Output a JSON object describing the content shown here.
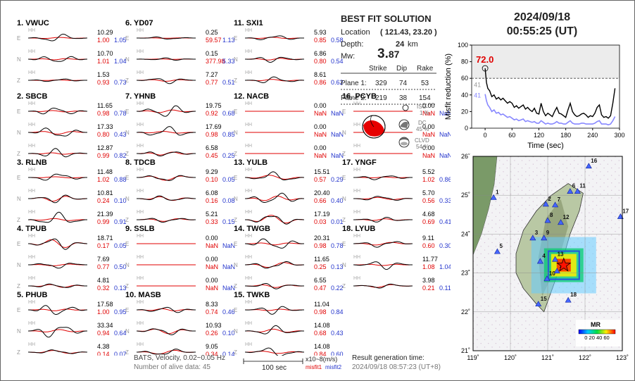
{
  "waveform_panel": {
    "channel_tag": "HH",
    "components": [
      "E",
      "N",
      "Z"
    ],
    "stations": [
      {
        "label": "1.  VWUC",
        "traces": [
          {
            "amp": "10.29",
            "m1": "1.00",
            "m2": "1.05",
            "has_data": true
          },
          {
            "amp": "10.70",
            "m1": "1.01",
            "m2": "1.04",
            "has_data": true
          },
          {
            "amp": "1.53",
            "m1": "0.93",
            "m2": "0.73",
            "has_data": true
          }
        ]
      },
      {
        "label": "2.  SBCB",
        "traces": [
          {
            "amp": "11.65",
            "m1": "0.98",
            "m2": "0.78",
            "has_data": true
          },
          {
            "amp": "17.33",
            "m1": "0.80",
            "m2": "0.43",
            "has_data": true
          },
          {
            "amp": "12.87",
            "m1": "0.99",
            "m2": "0.82",
            "has_data": true
          }
        ]
      },
      {
        "label": "3.  RLNB",
        "traces": [
          {
            "amp": "11.48",
            "m1": "1.02",
            "m2": "0.88",
            "has_data": true
          },
          {
            "amp": "10.81",
            "m1": "0.24",
            "m2": "0.10",
            "has_data": true
          },
          {
            "amp": "21.39",
            "m1": "0.99",
            "m2": "0.91",
            "has_data": true
          }
        ]
      },
      {
        "label": "4.  TPUB",
        "traces": [
          {
            "amp": "18.71",
            "m1": "0.17",
            "m2": "0.05",
            "has_data": true
          },
          {
            "amp": "7.69",
            "m1": "0.77",
            "m2": "0.50",
            "has_data": true
          },
          {
            "amp": "4.81",
            "m1": "0.32",
            "m2": "0.13",
            "has_data": true
          }
        ]
      },
      {
        "label": "5.  PHUB",
        "traces": [
          {
            "amp": "17.58",
            "m1": "1.00",
            "m2": "0.95",
            "has_data": true
          },
          {
            "amp": "33.34",
            "m1": "0.94",
            "m2": "0.64",
            "has_data": true
          },
          {
            "amp": "4.38",
            "m1": "0.14",
            "m2": "0.07",
            "has_data": true
          }
        ]
      },
      {
        "label": "6.  YD07",
        "traces": [
          {
            "amp": "0.25",
            "m1": "59.57",
            "m2": "1.13",
            "has_data": true
          },
          {
            "amp": "0.15",
            "m1": "377.98",
            "m2": "5.33",
            "has_data": true
          },
          {
            "amp": "7.27",
            "m1": "0.77",
            "m2": "0.51",
            "has_data": true
          }
        ]
      },
      {
        "label": "7.  YHNB",
        "traces": [
          {
            "amp": "19.75",
            "m1": "0.92",
            "m2": "0.68",
            "has_data": true
          },
          {
            "amp": "17.69",
            "m1": "0.98",
            "m2": "0.85",
            "has_data": true
          },
          {
            "amp": "6.58",
            "m1": "0.45",
            "m2": "0.25",
            "has_data": true
          }
        ]
      },
      {
        "label": "8.  TDCB",
        "traces": [
          {
            "amp": "9.29",
            "m1": "0.10",
            "m2": "0.05",
            "has_data": true
          },
          {
            "amp": "6.08",
            "m1": "0.16",
            "m2": "0.08",
            "has_data": true
          },
          {
            "amp": "5.21",
            "m1": "0.33",
            "m2": "0.15",
            "has_data": true
          }
        ]
      },
      {
        "label": "9.  SSLB",
        "traces": [
          {
            "amp": "0.00",
            "m1": "NaN",
            "m2": "NaN",
            "has_data": false
          },
          {
            "amp": "0.00",
            "m1": "NaN",
            "m2": "NaN",
            "has_data": false
          },
          {
            "amp": "0.00",
            "m1": "NaN",
            "m2": "NaN",
            "has_data": false
          }
        ]
      },
      {
        "label": "10. MASB",
        "traces": [
          {
            "amp": "8.33",
            "m1": "0.74",
            "m2": "0.46",
            "has_data": true
          },
          {
            "amp": "10.93",
            "m1": "0.26",
            "m2": "0.10",
            "has_data": true
          },
          {
            "amp": "9.05",
            "m1": "0.34",
            "m2": "0.14",
            "has_data": true
          }
        ]
      },
      {
        "label": "11. SXI1",
        "traces": [
          {
            "amp": "5.93",
            "m1": "0.85",
            "m2": "0.58",
            "has_data": true
          },
          {
            "amp": "6.86",
            "m1": "0.80",
            "m2": "0.54",
            "has_data": true
          },
          {
            "amp": "8.61",
            "m1": "0.86",
            "m2": "0.62",
            "has_data": true
          }
        ]
      },
      {
        "label": "12. NACB",
        "traces": [
          {
            "amp": "0.00",
            "m1": "NaN",
            "m2": "NaN",
            "has_data": false
          },
          {
            "amp": "0.00",
            "m1": "NaN",
            "m2": "NaN",
            "has_data": false
          },
          {
            "amp": "0.00",
            "m1": "NaN",
            "m2": "NaN",
            "has_data": false
          }
        ]
      },
      {
        "label": "13. YULB",
        "traces": [
          {
            "amp": "15.51",
            "m1": "0.57",
            "m2": "0.29",
            "has_data": true
          },
          {
            "amp": "20.40",
            "m1": "0.66",
            "m2": "0.40",
            "has_data": true
          },
          {
            "amp": "17.19",
            "m1": "0.03",
            "m2": "0.01",
            "has_data": true
          }
        ]
      },
      {
        "label": "14. TWGB",
        "traces": [
          {
            "amp": "20.31",
            "m1": "0.98",
            "m2": "0.78",
            "has_data": true
          },
          {
            "amp": "11.65",
            "m1": "0.25",
            "m2": "0.13",
            "has_data": true
          },
          {
            "amp": "6.55",
            "m1": "0.47",
            "m2": "0.22",
            "has_data": true
          }
        ]
      },
      {
        "label": "15. TWKB",
        "traces": [
          {
            "amp": "11.04",
            "m1": "0.98",
            "m2": "0.84",
            "has_data": true
          },
          {
            "amp": "14.08",
            "m1": "0.68",
            "m2": "0.43",
            "has_data": true
          },
          {
            "amp": "14.08",
            "m1": "0.84",
            "m2": "0.60",
            "has_data": true
          }
        ]
      },
      {
        "label": "16. PCYB",
        "traces": [
          {
            "amp": "0.00",
            "m1": "NaN",
            "m2": "NaN",
            "has_data": false
          },
          {
            "amp": "0.00",
            "m1": "NaN",
            "m2": "NaN",
            "has_data": false
          },
          {
            "amp": "0.00",
            "m1": "NaN",
            "m2": "NaN",
            "has_data": false
          }
        ]
      },
      {
        "label": "17. YNGF",
        "traces": [
          {
            "amp": "5.52",
            "m1": "1.02",
            "m2": "0.86",
            "has_data": true
          },
          {
            "amp": "5.70",
            "m1": "0.56",
            "m2": "0.33",
            "has_data": true
          },
          {
            "amp": "4.68",
            "m1": "0.69",
            "m2": "0.41",
            "has_data": true
          }
        ]
      },
      {
        "label": "18. LYUB",
        "traces": [
          {
            "amp": "9.11",
            "m1": "0.60",
            "m2": "0.30",
            "has_data": true
          },
          {
            "amp": "11.77",
            "m1": "1.08",
            "m2": "1.04",
            "has_data": true
          },
          {
            "amp": "3.98",
            "m1": "0.21",
            "m2": "0.11",
            "has_data": true
          }
        ]
      }
    ]
  },
  "solution": {
    "heading": "BEST FIT SOLUTION",
    "location_label": "Location",
    "location_value": "( 121.43,  23.20 )",
    "depth_label": "Depth:",
    "depth_value": "24",
    "depth_unit": "km",
    "mw_label": "Mw:",
    "mw_main": "3.",
    "mw_decimals": "87",
    "col_strike": "Strike",
    "col_dip": "Dip",
    "col_rake": "Rake",
    "plane1_label": "Plane 1:",
    "plane1": [
      "329",
      "74",
      "53"
    ],
    "plane2_label": "Plane 2:",
    "plane2": [
      "219",
      "38",
      "154"
    ],
    "iso_label": "ISO",
    "iso_pct": "1 %",
    "dc_label": "DC",
    "dc_pct": "45 %",
    "clvd_label": "CLVD",
    "clvd_pct": "54 %"
  },
  "event": {
    "date": "2024/09/18",
    "time": "00:55:25  (UT)"
  },
  "chart_data": {
    "type": "line",
    "ylabel": "Misfit reduction (%)",
    "xlabel": "Time (sec)",
    "xlim": [
      -30,
      300
    ],
    "ylim": [
      0,
      100
    ],
    "xticks": [
      "0",
      "60",
      "120",
      "180",
      "240",
      "300"
    ],
    "yticks": [
      "0",
      "20",
      "40",
      "60",
      "80",
      "100"
    ],
    "threshold": 60,
    "peak_label": "72.0",
    "series": [
      {
        "color": "#000000",
        "x": [
          0,
          3,
          6,
          10,
          15,
          20,
          25,
          30,
          35,
          40,
          45,
          50,
          55,
          60,
          65,
          70,
          75,
          80,
          85,
          90,
          95,
          100,
          105,
          110,
          115,
          120,
          125,
          130,
          135,
          140,
          145,
          150,
          155,
          160,
          165,
          170,
          175,
          180,
          185,
          190,
          195,
          200,
          205,
          210,
          215,
          220,
          225,
          230,
          235,
          240,
          245,
          250,
          255,
          260,
          265,
          270,
          275,
          280,
          285,
          290
        ],
        "values": [
          72,
          55,
          48,
          45,
          38,
          40,
          35,
          37,
          34,
          36,
          33,
          30,
          32,
          30,
          25,
          27,
          24,
          26,
          28,
          23,
          25,
          22,
          20,
          24,
          18,
          17,
          30,
          20,
          15,
          18,
          16,
          14,
          20,
          25,
          18,
          17,
          15,
          13,
          22,
          30,
          20,
          16,
          14,
          15,
          17,
          18,
          16,
          13,
          15,
          14,
          18,
          25,
          28,
          16,
          13,
          14,
          12,
          15,
          30,
          48
        ]
      },
      {
        "color": "#8888ff",
        "x": [
          0,
          3,
          6,
          10,
          15,
          20,
          25,
          30,
          35,
          40,
          45,
          50,
          55,
          60,
          65,
          70,
          75,
          80,
          85,
          90,
          95,
          100,
          105,
          110,
          115,
          120,
          125,
          130,
          135,
          140,
          145,
          150,
          155,
          160,
          165,
          170,
          175,
          180,
          185,
          190,
          195,
          200,
          205,
          210,
          215,
          220,
          225,
          230,
          235,
          240,
          245,
          250,
          255,
          260,
          265,
          270,
          275,
          280,
          285,
          290
        ],
        "values": [
          41,
          33,
          28,
          25,
          20,
          22,
          18,
          19,
          16,
          17,
          15,
          13,
          14,
          12,
          10,
          11,
          9,
          10,
          11,
          8,
          9,
          8,
          7,
          8,
          6,
          6,
          9,
          7,
          5,
          6,
          5,
          5,
          6,
          8,
          6,
          6,
          5,
          5,
          7,
          9,
          6,
          5,
          5,
          5,
          6,
          6,
          5,
          5,
          5,
          5,
          6,
          8,
          9,
          5,
          5,
          5,
          4,
          5,
          9,
          14
        ]
      }
    ],
    "start_labels": {
      "black": "72.0",
      "gray": "41",
      "blue": "41"
    }
  },
  "map": {
    "lon_ticks": [
      "119˚",
      "120˚",
      "121˚",
      "122˚",
      "123˚"
    ],
    "lat_ticks": [
      "26˚",
      "25˚",
      "24˚",
      "23˚",
      "22˚",
      "21˚"
    ],
    "legend_title": "MR",
    "legend_ticks": "0 20 40 60",
    "epicenter": {
      "lon": 121.43,
      "lat": 23.2
    },
    "stations": [
      {
        "id": "1",
        "lon": 119.55,
        "lat": 24.94
      },
      {
        "id": "2",
        "lon": 120.95,
        "lat": 24.77
      },
      {
        "id": "3",
        "lon": 120.6,
        "lat": 23.9
      },
      {
        "id": "4",
        "lon": 120.8,
        "lat": 23.3
      },
      {
        "id": "5",
        "lon": 119.65,
        "lat": 23.55
      },
      {
        "id": "6",
        "lon": 121.6,
        "lat": 25.1
      },
      {
        "id": "7",
        "lon": 121.2,
        "lat": 24.75
      },
      {
        "id": "8",
        "lon": 121.0,
        "lat": 24.35
      },
      {
        "id": "9",
        "lon": 120.9,
        "lat": 23.9
      },
      {
        "id": "10",
        "lon": 120.98,
        "lat": 22.85
      },
      {
        "id": "11",
        "lon": 121.8,
        "lat": 25.1
      },
      {
        "id": "12",
        "lon": 121.35,
        "lat": 24.3
      },
      {
        "id": "13",
        "lon": 121.2,
        "lat": 23.35
      },
      {
        "id": "14",
        "lon": 121.25,
        "lat": 23.05
      },
      {
        "id": "15",
        "lon": 120.75,
        "lat": 22.2
      },
      {
        "id": "16",
        "lon": 122.1,
        "lat": 25.75
      },
      {
        "id": "17",
        "lon": 122.95,
        "lat": 24.45
      },
      {
        "id": "18",
        "lon": 121.55,
        "lat": 22.3
      }
    ]
  },
  "footer": {
    "filter": "BATS, Velocity, 0.02~0.05 Hz",
    "alive": "Number of alive data: 45",
    "scale": "100 sec",
    "units": "x10~8(m/s)",
    "misfit1": "misfit1",
    "misfit2": "misfit2",
    "result_label": "Result generation time:",
    "result_time": "2024/09/18 08:57:23 (UT+8)"
  }
}
